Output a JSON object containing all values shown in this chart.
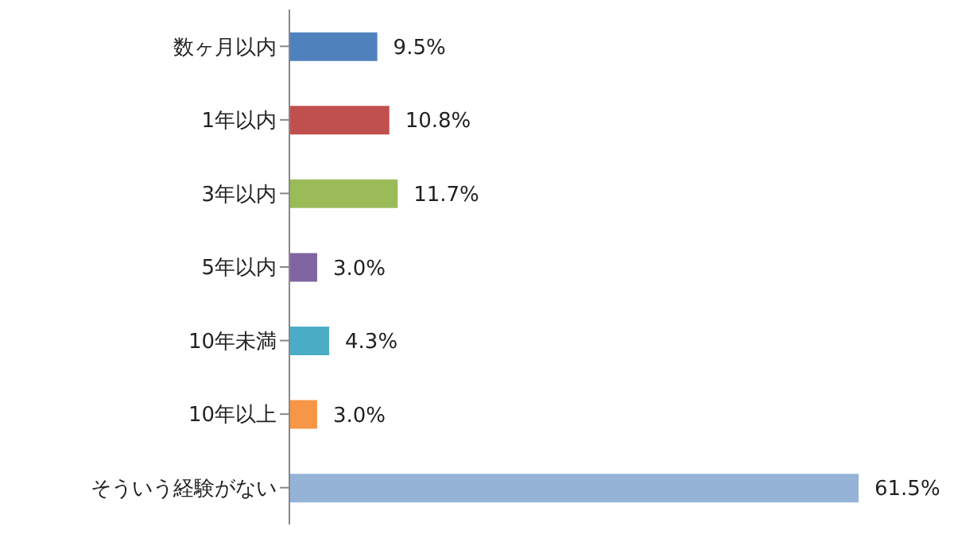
{
  "chart_data": {
    "type": "bar",
    "orientation": "horizontal",
    "categories": [
      "数ヶ月以内",
      "1年以内",
      "3年以内",
      "5年以内",
      "10年未満",
      "10年以上",
      "そういう経験がない"
    ],
    "values": [
      9.5,
      10.8,
      11.7,
      3.0,
      4.3,
      3.0,
      61.5
    ],
    "value_labels": [
      "9.5%",
      "10.8%",
      "11.7%",
      "3.0%",
      "4.3%",
      "3.0%",
      "61.5%"
    ],
    "colors": [
      "#4f81bd",
      "#c0504d",
      "#9bbb59",
      "#8064a2",
      "#4bacc6",
      "#f79646",
      "#95b3d7"
    ]
  }
}
